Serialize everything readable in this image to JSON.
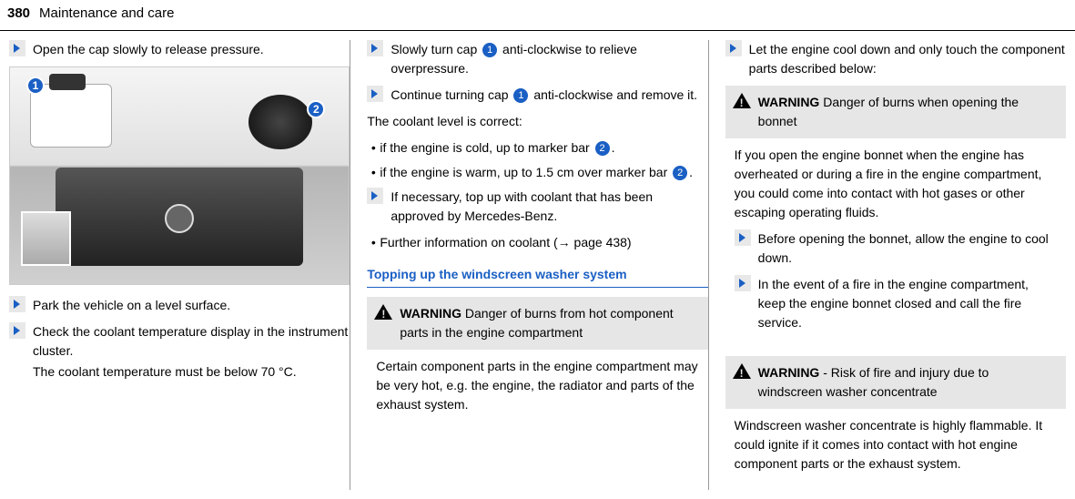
{
  "header": {
    "page_number": "380",
    "title": "Maintenance and care"
  },
  "col1": {
    "step_open_cap": "Open the cap slowly to release pressure.",
    "callout_1": "1",
    "callout_2": "2",
    "step_park": "Park the vehicle on a level surface.",
    "step_check_temp": "Check the coolant temperature display in the instrument cluster.",
    "step_check_temp_sub": "The coolant temperature must be below 70 °C."
  },
  "col2": {
    "step_slow_turn_a": "Slowly turn cap",
    "step_slow_turn_b": "anti-clockwise to relieve overpressure.",
    "step_continue_a": "Continue turning cap",
    "step_continue_b": "anti-clockwise and remove it.",
    "level_correct": "The coolant level is correct:",
    "bullet_cold_a": "if the engine is cold, up to marker bar",
    "bullet_cold_b": ".",
    "bullet_warm_a": "if the engine is warm, up to 1.5 cm over marker bar",
    "bullet_warm_b": ".",
    "step_topup": "If necessary, top up with coolant that has been approved by Mercedes-Benz.",
    "bullet_info": "Further information on coolant (→ page 438)",
    "heading": "Topping up the windscreen washer system",
    "warn1_label": "WARNING",
    "warn1_title": " Danger of burns from hot component parts in the engine compartment",
    "warn1_body": "Certain component parts in the engine compartment may be very hot, e.g. the engine, the radiator and parts of the exhaust system.",
    "ref1": "1",
    "ref2": "2"
  },
  "col3": {
    "step_cooldown": "Let the engine cool down and only touch the component parts described below:",
    "warn2_label": "WARNING",
    "warn2_title": " Danger of burns when opening the bonnet",
    "warn2_body": "If you open the engine bonnet when the engine has overheated or during a fire in the engine compartment, you could come into contact with hot gases or other escaping operating fluids.",
    "step_before": "Before opening the bonnet, allow the engine to cool down.",
    "step_fire": "In the event of a fire in the engine compartment, keep the engine bonnet closed and call the fire service.",
    "warn3_label": "WARNING",
    "warn3_title": " ‑ Risk of fire and injury due to windscreen washer concentrate",
    "warn3_body": "Windscreen washer concentrate is highly flammable. It could ignite if it comes into contact with hot engine component parts or the exhaust system."
  }
}
